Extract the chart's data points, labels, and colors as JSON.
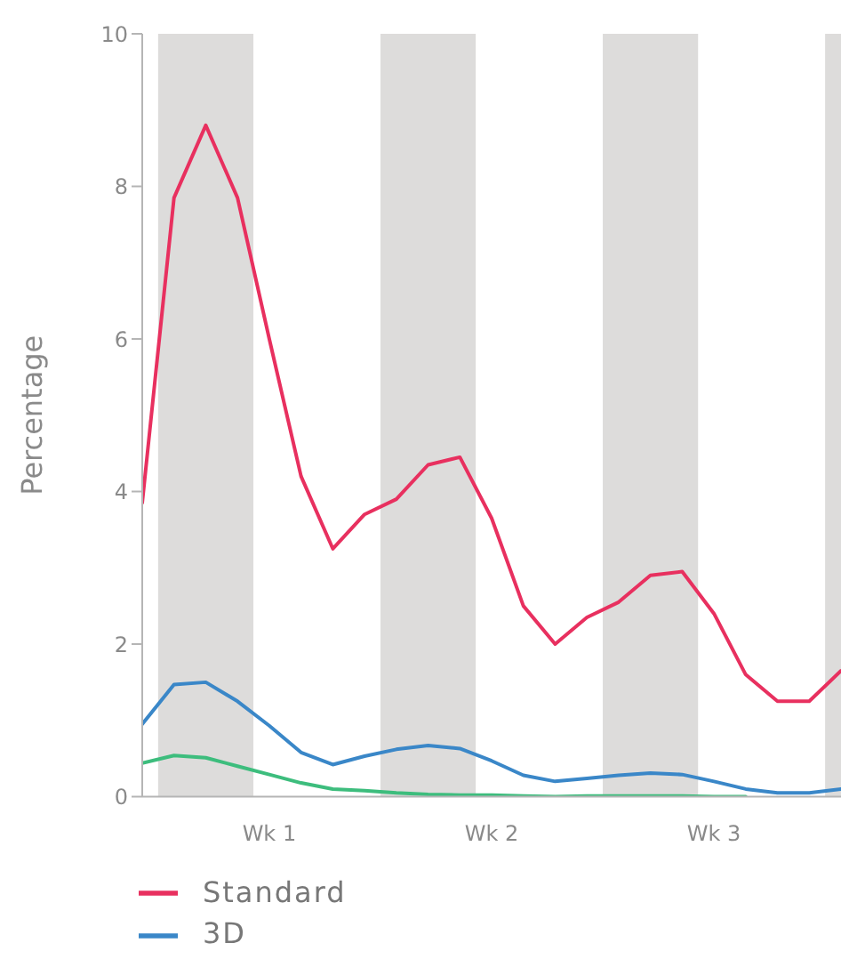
{
  "chart_data": {
    "type": "line",
    "ylabel": "Percentage",
    "categories": [
      null,
      null,
      null,
      null,
      "Wk 1",
      null,
      null,
      null,
      null,
      null,
      null,
      "Wk 2",
      null,
      null,
      null,
      null,
      null,
      null,
      "Wk 3",
      null,
      null,
      null,
      null
    ],
    "series": [
      {
        "name": "Standard",
        "color": "#e8305f",
        "values": [
          3.85,
          7.85,
          8.8,
          7.85,
          6.0,
          4.2,
          3.25,
          3.7,
          3.9,
          4.35,
          4.45,
          3.65,
          2.5,
          2.0,
          2.35,
          2.55,
          2.9,
          2.95,
          2.4,
          1.6,
          1.25,
          1.25,
          1.65
        ]
      },
      {
        "name": "3D",
        "color": "#3a87c8",
        "values": [
          0.95,
          1.47,
          1.5,
          1.25,
          0.93,
          0.58,
          0.42,
          0.53,
          0.62,
          0.67,
          0.63,
          0.47,
          0.28,
          0.2,
          0.24,
          0.28,
          0.31,
          0.29,
          0.2,
          0.1,
          0.05,
          0.05,
          0.1
        ]
      },
      {
        "color": "#3dbd7d",
        "values": [
          0.44,
          0.54,
          0.51,
          0.4,
          0.29,
          0.18,
          0.1,
          0.08,
          0.05,
          0.03,
          0.02,
          0.02,
          0.01,
          0.0,
          0.01,
          0.01,
          0.01,
          0.01,
          0.0,
          0.0,
          null,
          null,
          null
        ]
      }
    ],
    "ylim": [
      0,
      10
    ],
    "yticks": [
      0,
      2,
      4,
      6,
      8,
      10
    ],
    "grid": false,
    "legend": "bottom left",
    "marker": "none",
    "line_style": "solid"
  }
}
